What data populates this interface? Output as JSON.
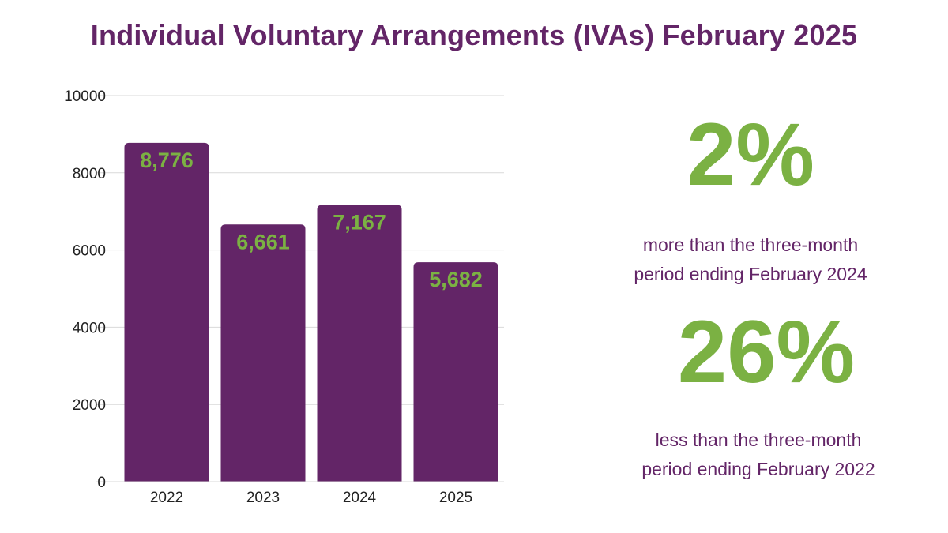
{
  "title": "Individual Voluntary Arrangements (IVAs) February 2025",
  "colors": {
    "bar": "#632567",
    "label": "#7bb143",
    "title": "#632567",
    "grid": "#d9d9d9"
  },
  "chart_data": {
    "type": "bar",
    "title": "",
    "xlabel": "",
    "ylabel": "",
    "categories": [
      "2022",
      "2023",
      "2024",
      "2025"
    ],
    "values": [
      8776,
      6661,
      7167,
      5682
    ],
    "data_labels": [
      "8,776",
      "6,661",
      "7,167",
      "5,682"
    ],
    "ylim": [
      0,
      10000
    ],
    "yticks": [
      "0",
      "2000",
      "4000",
      "6000",
      "8000",
      "10000"
    ],
    "grid": true,
    "legend": "none"
  },
  "stats": [
    {
      "value": "2%",
      "line1": "more than the three-month",
      "line2": "period ending February 2024"
    },
    {
      "value": "26%",
      "line1": "less than the three-month",
      "line2": "period ending February 2022"
    }
  ]
}
